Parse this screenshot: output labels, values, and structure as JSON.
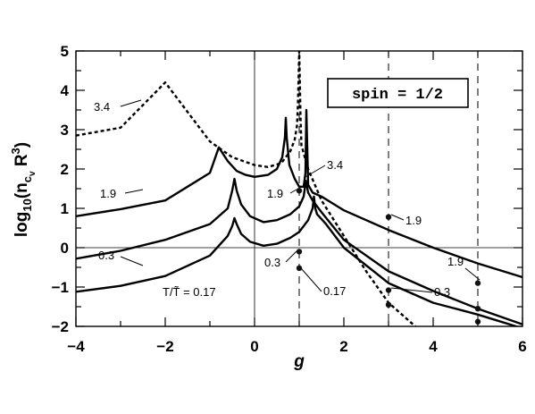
{
  "chart_data": {
    "type": "line",
    "xlabel": "g",
    "ylabel_main": "log",
    "ylabel_sub": "10",
    "ylabel_rest": "(n",
    "ylabel_c": "c",
    "ylabel_v": "v",
    "ylabel_R": " R",
    "ylabel_exp": "3",
    "ylabel_close": ")",
    "xlim": [
      -4,
      6
    ],
    "ylim": [
      -2,
      5
    ],
    "xticks": [
      "−4",
      "−2",
      "0",
      "2",
      "4",
      "6"
    ],
    "yticks": [
      "−2",
      "−1",
      "0",
      "1",
      "2",
      "3",
      "4",
      "5"
    ],
    "legend_box": "spin = 1/2",
    "reference_lines": {
      "y0": 0,
      "x0": 0,
      "dashed_x": [
        1,
        3,
        5
      ]
    },
    "series": [
      {
        "label": "3.4",
        "style": "dashed",
        "x": [
          -4,
          -3,
          -2,
          -1,
          -0.5,
          0,
          0.3,
          0.6,
          0.8,
          0.9,
          0.95,
          0.97,
          0.99,
          1.0,
          1.01,
          1.03,
          1.05,
          1.2,
          1.5,
          2.0,
          2.5,
          3.0,
          3.2,
          3.5,
          3.6
        ],
        "y": [
          2.85,
          3.05,
          4.2,
          2.7,
          2.3,
          2.1,
          2.05,
          2.15,
          2.45,
          2.75,
          3.1,
          3.6,
          4.5,
          5.0,
          4.5,
          3.3,
          2.6,
          2.0,
          1.2,
          0.3,
          -0.6,
          -1.4,
          -1.6,
          -1.9,
          -2.0
        ]
      },
      {
        "label": "1.9",
        "style": "solid",
        "x": [
          -4,
          -3,
          -2,
          -1,
          -0.8,
          -0.6,
          -0.4,
          -0.2,
          0,
          0.3,
          0.5,
          0.62,
          0.68,
          0.7,
          0.72,
          0.78,
          0.9,
          1.0,
          1.1,
          1.14,
          1.16,
          1.2,
          1.3,
          1.5,
          2.0,
          3.0,
          4.0,
          5.0,
          6.0
        ],
        "y": [
          0.8,
          0.98,
          1.2,
          1.9,
          2.55,
          2.2,
          1.95,
          1.85,
          1.8,
          1.85,
          2.0,
          2.3,
          2.8,
          3.3,
          2.8,
          2.1,
          1.75,
          1.55,
          1.55,
          1.9,
          3.5,
          1.6,
          1.4,
          1.3,
          0.95,
          0.45,
          0.0,
          -0.4,
          -0.75
        ]
      },
      {
        "label": "0.3",
        "style": "solid",
        "x": [
          -4,
          -3,
          -2,
          -1,
          -0.6,
          -0.5,
          -0.45,
          -0.4,
          -0.3,
          -0.1,
          0.2,
          0.5,
          0.8,
          1.0,
          1.1,
          1.15,
          1.2,
          1.25,
          1.3,
          1.5,
          2.0,
          3.0,
          4.0,
          5.0,
          6.0
        ],
        "y": [
          -0.28,
          -0.08,
          0.2,
          0.6,
          1.0,
          1.45,
          1.75,
          1.45,
          1.1,
          0.8,
          0.65,
          0.7,
          0.85,
          1.05,
          1.3,
          1.7,
          1.4,
          1.3,
          1.2,
          0.9,
          0.2,
          -0.6,
          -1.1,
          -1.55,
          -1.95
        ]
      },
      {
        "label": "T/T̃ = 0.17",
        "style": "solid",
        "x": [
          -4,
          -3,
          -2,
          -1,
          -0.6,
          -0.5,
          -0.45,
          -0.4,
          -0.3,
          -0.1,
          0.2,
          0.5,
          0.8,
          1.0,
          1.2,
          1.3,
          1.33,
          1.36,
          1.4,
          1.6,
          2.0,
          3.0,
          4.0,
          5.0,
          6.0
        ],
        "y": [
          -1.12,
          -0.97,
          -0.72,
          -0.2,
          0.3,
          0.55,
          0.75,
          0.6,
          0.35,
          0.15,
          0.05,
          0.1,
          0.25,
          0.4,
          0.7,
          1.0,
          1.3,
          1.0,
          0.85,
          0.6,
          0.0,
          -0.9,
          -1.4,
          -1.7,
          -2.05
        ]
      }
    ],
    "markers": [
      {
        "x": 1.0,
        "y": 1.45
      },
      {
        "x": 1.0,
        "y": -0.1
      },
      {
        "x": 1.0,
        "y": -0.52
      },
      {
        "x": 3.0,
        "y": 0.78
      },
      {
        "x": 3.0,
        "y": -1.08
      },
      {
        "x": 3.0,
        "y": -1.45
      },
      {
        "x": 5.0,
        "y": -0.9
      },
      {
        "x": 5.0,
        "y": -1.55
      },
      {
        "x": 5.0,
        "y": -1.88
      }
    ],
    "annotations": [
      {
        "text": "3.4"
      },
      {
        "text": "1.9"
      },
      {
        "text": "0.3"
      },
      {
        "text": "T/T̃ = 0.17"
      },
      {
        "text": "1.9"
      },
      {
        "text": "3.4"
      },
      {
        "text": "0.3"
      },
      {
        "text": "0.17"
      },
      {
        "text": "1.9"
      },
      {
        "text": "0.3"
      },
      {
        "text": "1.9"
      }
    ]
  }
}
